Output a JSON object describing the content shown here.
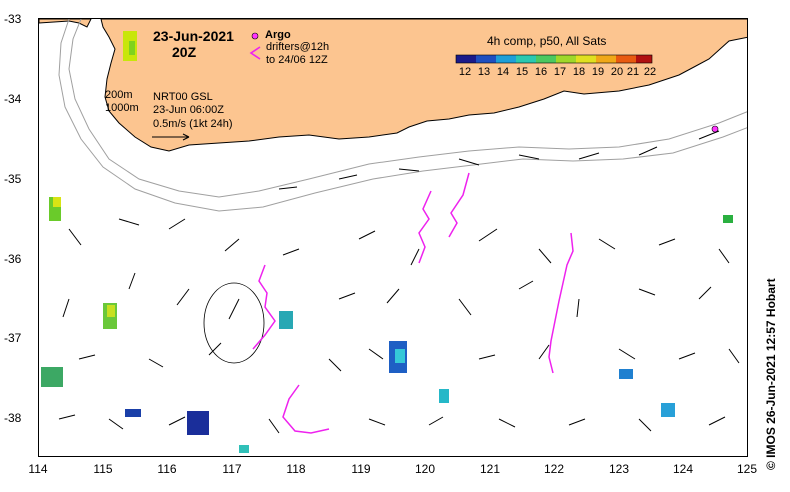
{
  "map": {
    "title_date": "23-Jun-2021",
    "title_hour": "20Z",
    "legend": {
      "argo_label": "Argo",
      "drifter_label_1": "drifters@12h",
      "drifter_label_2": "to 24/06 12Z",
      "argo_color": "#ff33ff",
      "drifter_color": "#ee22ee"
    },
    "info": {
      "isobath_1": "200m",
      "isobath_2": "1000m",
      "product": "NRT00 GSL",
      "product_time": "23-Jun 06:00Z",
      "scale": "0.5m/s (1kt 24h)"
    },
    "colorbar": {
      "title": "4h comp, p50, All Sats",
      "ticks": [
        "12",
        "13",
        "14",
        "15",
        "16",
        "17",
        "18",
        "19",
        "20",
        "21",
        "22"
      ]
    },
    "x_ticks": [
      "114",
      "115",
      "116",
      "117",
      "118",
      "119",
      "120",
      "121",
      "122",
      "123",
      "124",
      "125"
    ],
    "y_ticks": [
      "-33",
      "-34",
      "-35",
      "-36",
      "-37",
      "-38"
    ],
    "credit": "© IMOS 26-Jun-2021 12:57 Hobart",
    "colors": {
      "land": "#fcc590",
      "ocean": "#ffffff",
      "isobath": "#a0a0a0",
      "current_vector": "#000000"
    }
  }
}
